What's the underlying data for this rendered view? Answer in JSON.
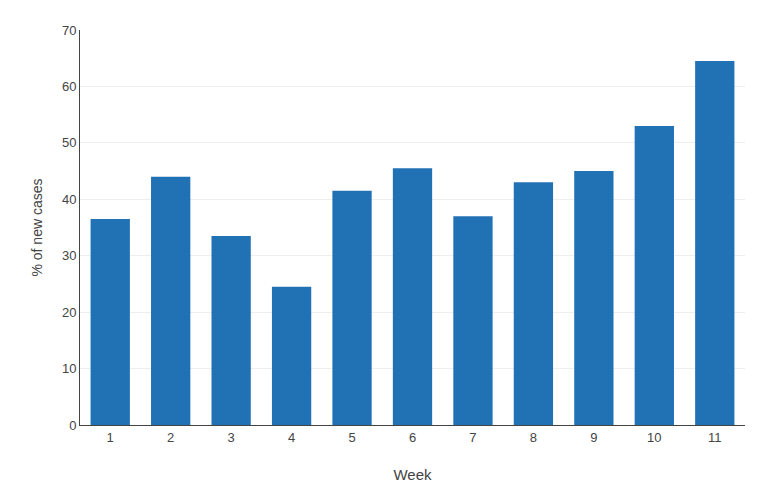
{
  "chart_data": {
    "type": "bar",
    "categories": [
      "1",
      "2",
      "3",
      "4",
      "5",
      "6",
      "7",
      "8",
      "9",
      "10",
      "11"
    ],
    "values": [
      36.5,
      44.0,
      33.5,
      24.5,
      41.5,
      45.5,
      37.0,
      43.0,
      45.0,
      53.0,
      64.5
    ],
    "color": "#2171b5",
    "xlabel": "Week",
    "ylabel": "% of new cases",
    "ylim": [
      0,
      70
    ],
    "yticks": [
      0,
      10,
      20,
      30,
      40,
      50,
      60,
      70
    ],
    "grid": true
  }
}
